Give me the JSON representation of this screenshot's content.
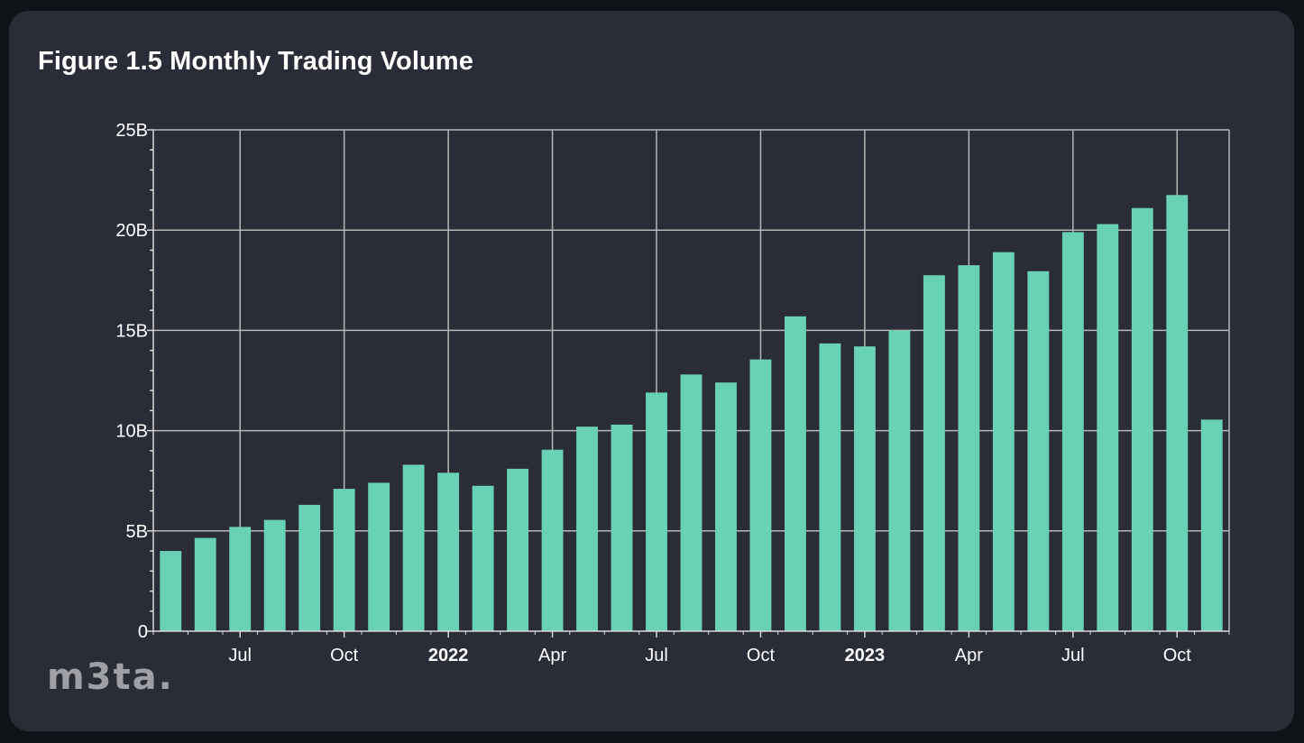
{
  "title": "Figure 1.5 Monthly Trading Volume",
  "watermark": "m3ta.",
  "colors": {
    "background": "#2a2d37",
    "bar": "#6ad2b4",
    "grid": "#b7b7b7",
    "axis": "#d9d9d9",
    "text": "#ffffff",
    "watermark": "#9ea0a5"
  },
  "chart_data": {
    "type": "bar",
    "title": "Figure 1.5 Monthly Trading Volume",
    "xlabel": "",
    "ylabel": "",
    "ylim": [
      0,
      25
    ],
    "y_unit": "B",
    "grid": true,
    "y_ticks": [
      {
        "value": 0,
        "label": "0"
      },
      {
        "value": 5,
        "label": "5B"
      },
      {
        "value": 10,
        "label": "10B"
      },
      {
        "value": 15,
        "label": "15B"
      },
      {
        "value": 20,
        "label": "20B"
      },
      {
        "value": 25,
        "label": "25B"
      }
    ],
    "x_ticks": [
      {
        "index": 2,
        "label": "Jul",
        "bold": false
      },
      {
        "index": 5,
        "label": "Oct",
        "bold": false
      },
      {
        "index": 8,
        "label": "2022",
        "bold": true
      },
      {
        "index": 11,
        "label": "Apr",
        "bold": false
      },
      {
        "index": 14,
        "label": "Jul",
        "bold": false
      },
      {
        "index": 17,
        "label": "Oct",
        "bold": false
      },
      {
        "index": 20,
        "label": "2023",
        "bold": true
      },
      {
        "index": 23,
        "label": "Apr",
        "bold": false
      },
      {
        "index": 26,
        "label": "Jul",
        "bold": false
      },
      {
        "index": 29,
        "label": "Oct",
        "bold": false
      }
    ],
    "categories": [
      "2021-05",
      "2021-06",
      "2021-07",
      "2021-08",
      "2021-09",
      "2021-10",
      "2021-11",
      "2021-12",
      "2022-01",
      "2022-02",
      "2022-03",
      "2022-04",
      "2022-05",
      "2022-06",
      "2022-07",
      "2022-08",
      "2022-09",
      "2022-10",
      "2022-11",
      "2022-12",
      "2023-01",
      "2023-02",
      "2023-03",
      "2023-04",
      "2023-05",
      "2023-06",
      "2023-07",
      "2023-08",
      "2023-09",
      "2023-10",
      "2023-11"
    ],
    "series": [
      {
        "name": "Monthly Trading Volume",
        "values": [
          4.0,
          4.65,
          5.2,
          5.55,
          6.3,
          7.1,
          7.4,
          8.3,
          7.9,
          7.25,
          8.1,
          9.05,
          10.2,
          10.3,
          11.9,
          12.8,
          12.4,
          13.55,
          15.7,
          14.35,
          14.2,
          15.0,
          17.75,
          18.25,
          18.9,
          17.95,
          19.9,
          20.3,
          21.1,
          21.75,
          10.55
        ]
      }
    ]
  }
}
